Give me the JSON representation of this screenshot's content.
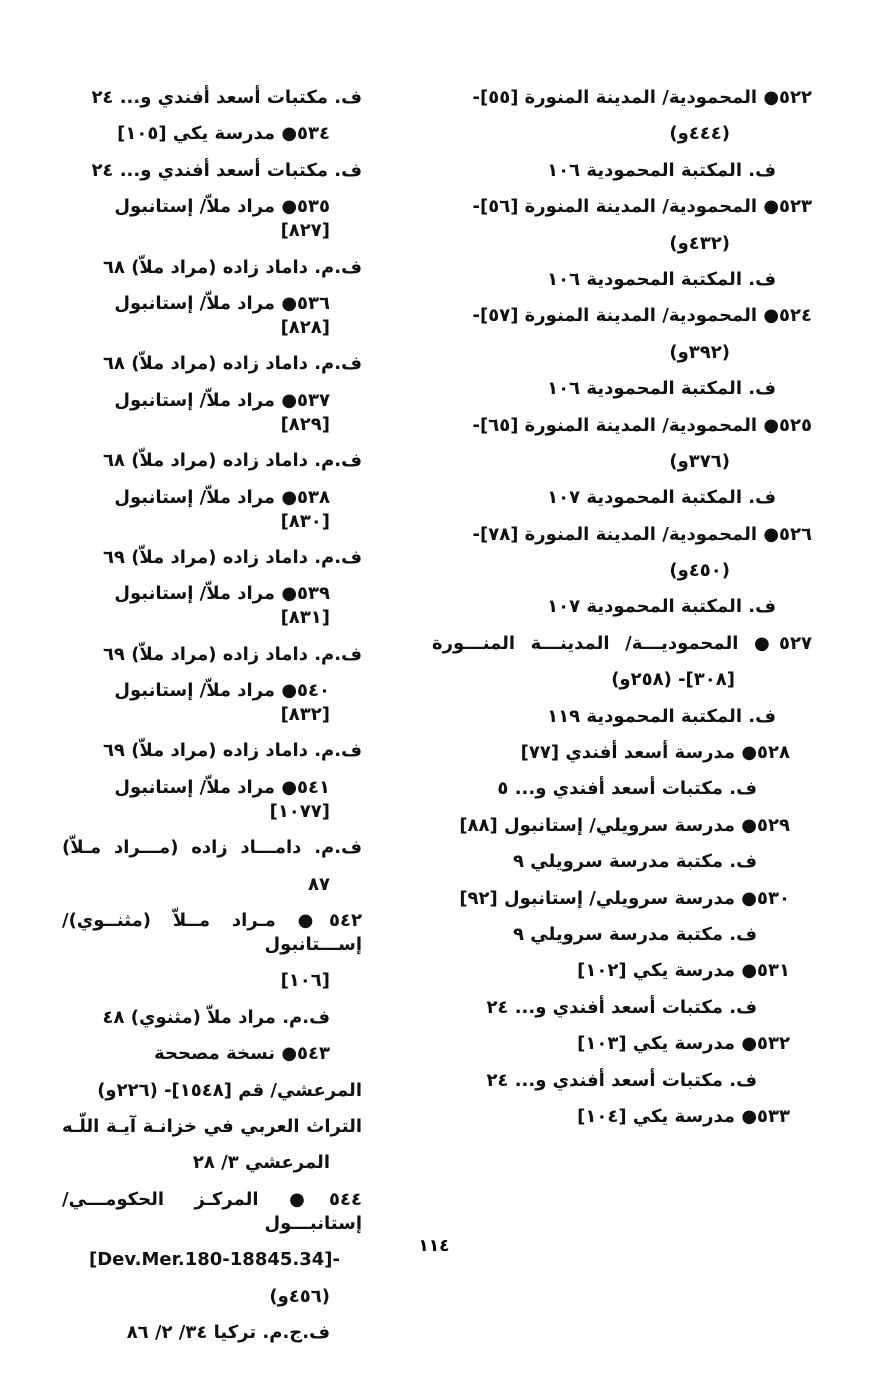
{
  "right_column": [
    "٥٢٢● المحمودية/ المدينة المنورة [٥٥]-",
    "(٤٤٤و)",
    "ف. المكتبة المحمودية ١٠٦",
    "٥٢٣● المحمودية/ المدينة المنورة [٥٦]-",
    "(٤٣٢و)",
    "ف. المكتبة المحمودية ١٠٦",
    "٥٢٤● المحمودية/ المدينة المنورة [٥٧]-",
    "(٣٩٢و)",
    "ف. المكتبة المحمودية ١٠٦",
    "٥٢٥● المحمودية/ المدينة المنورة [٦٥]-",
    "(٣٧٦و)",
    "ف. المكتبة المحمودية ١٠٧",
    "٥٢٦● المحمودية/ المدينة المنورة [٧٨]-",
    "(٤٥٠و)",
    "ف. المكتبة المحمودية ١٠٧",
    "٥٢٧● المحموديـــة/ المدينـــة المنـــورة",
    "[٣٠٨]- (٢٥٨و)",
    "ف. المكتبة المحمودية ١١٩",
    "٥٢٨● مدرسة أسعد أفندي [٧٧]",
    "ف. مكتبات أسعد أفندي و... ٥",
    "٥٢٩● مدرسة سرويلي/ إستانبول [٨٨]",
    "ف. مكتبة مدرسة سرويلي ٩",
    "٥٣٠● مدرسة سرويلي/ إستانبول [٩٢]",
    "ف. مكتبة مدرسة سرويلي ٩",
    "٥٣١● مدرسة يكي [١٠٢]",
    "ف. مكتبات أسعد أفندي و... ٢٤",
    "٥٣٢● مدرسة يكي [١٠٣]",
    "ف. مكتبات أسعد أفندي و... ٢٤",
    "٥٣٣● مدرسة يكي [١٠٤]"
  ],
  "left_column": [
    "ف. مكتبات أسعد أفندي و... ٢٤",
    "٥٣٤● مدرسة يكي [١٠٥]",
    "ف. مكتبات أسعد أفندي و... ٢٤",
    "٥٣٥● مراد ملاّ/ إستانبول [٨٢٧]",
    "ف.م. داماد زاده (مراد ملاّ) ٦٨",
    "٥٣٦● مراد ملاّ/ إستانبول [٨٢٨]",
    "ف.م. داماد زاده (مراد ملاّ) ٦٨",
    "٥٣٧● مراد ملاّ/ إستانبول [٨٢٩]",
    "ف.م. داماد زاده (مراد ملاّ) ٦٨",
    "٥٣٨● مراد ملاّ/ إستانبول [٨٣٠]",
    "ف.م. داماد زاده (مراد ملاّ) ٦٩",
    "٥٣٩● مراد ملاّ/ إستانبول [٨٣١]",
    "ف.م. داماد زاده (مراد ملاّ) ٦٩",
    "٥٤٠● مراد ملاّ/ إستانبول [٨٣٢]",
    "ف.م. داماد زاده (مراد ملاّ) ٦٩",
    "٥٤١● مراد ملاّ/ إستانبول [١٠٧٧]",
    "ف.م. دامـــاد زاده (مـــراد مـلاّ)",
    "٨٧",
    "٥٤٢● مـراد مــلاّ (مثنــوي)/ إســـتانبول",
    "[١٠٦]",
    "ف.م. مراد ملاّ (مثنوي) ٤٨",
    "٥٤٣● نسخة مصححة",
    "المرعشي/ قم [١٥٤٨]- (٢٢٦و)",
    "التراث العربي في خزانـة آيـة اللّـه",
    "المرعشي ٣/ ٢٨",
    "٥٤٤● المركـز الحكومـــي/ إستانبـــول",
    "-[34.Dev.Mer.180-18845]",
    "(٤٥٦و)",
    "ف.ج.م. تركيا ٣٤/ ٢/ ٨٦"
  ],
  "page_number": "١١٤"
}
